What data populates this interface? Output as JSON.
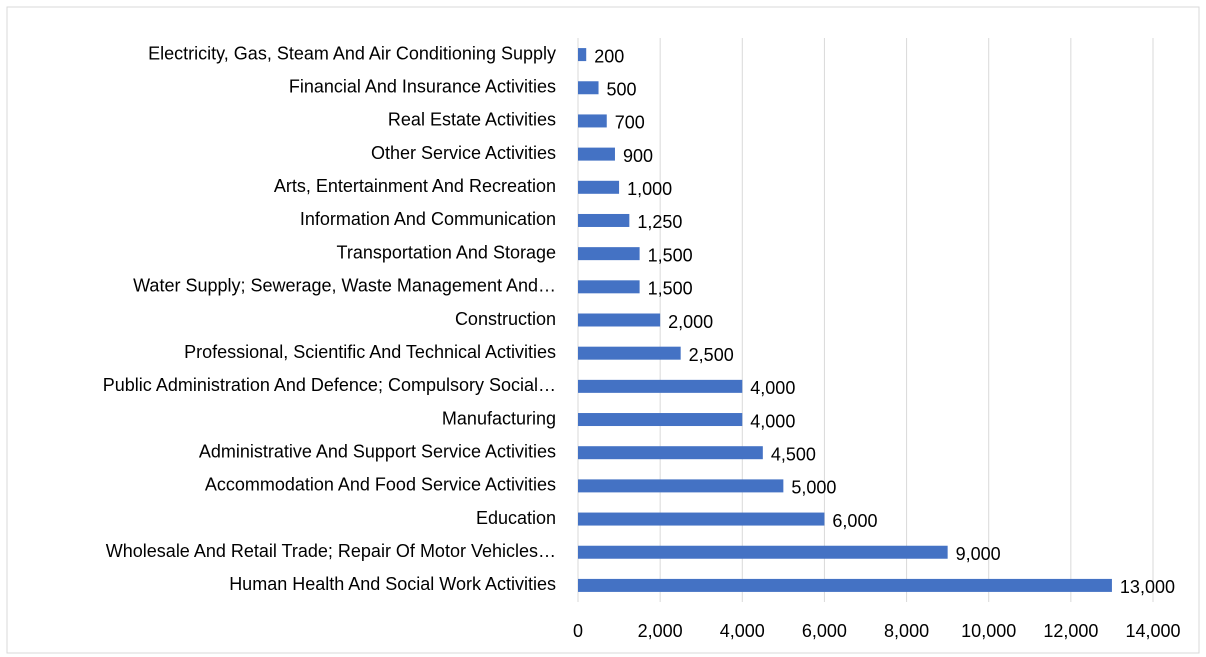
{
  "chart_data": {
    "type": "bar",
    "orientation": "horizontal",
    "color": "#4472c4",
    "grid": true,
    "categories": [
      "Electricity, Gas, Steam And Air Conditioning Supply",
      "Financial And Insurance Activities",
      "Real Estate Activities",
      "Other Service Activities",
      "Arts, Entertainment And Recreation",
      "Information And Communication",
      "Transportation And Storage",
      "Water Supply; Sewerage, Waste Management And…",
      "Construction",
      "Professional, Scientific And Technical Activities",
      "Public Administration And Defence; Compulsory Social…",
      "Manufacturing",
      "Administrative And Support Service Activities",
      "Accommodation And Food Service Activities",
      "Education",
      "Wholesale And Retail Trade; Repair Of Motor Vehicles…",
      "Human Health And Social Work Activities"
    ],
    "values": [
      200,
      500,
      700,
      900,
      1000,
      1250,
      1500,
      1500,
      2000,
      2500,
      4000,
      4000,
      4500,
      5000,
      6000,
      9000,
      13000
    ],
    "value_labels": [
      "200",
      "500",
      "700",
      "900",
      "1,000",
      "1,250",
      "1,500",
      "1,500",
      "2,000",
      "2,500",
      "4,000",
      "4,000",
      "4,500",
      "5,000",
      "6,000",
      "9,000",
      "13,000"
    ],
    "xlim": [
      0,
      14000
    ],
    "xticks": [
      0,
      {
        "value": 2000,
        "label": "2,000"
      },
      {
        "value": 4000,
        "label": "4,000"
      },
      {
        "value": 6000,
        "label": "6,000"
      },
      {
        "value": 8000,
        "label": "8,000"
      },
      {
        "value": 10000,
        "label": "10,000"
      },
      {
        "value": 12000,
        "label": "12,000"
      },
      {
        "value": 14000,
        "label": "14,000"
      }
    ]
  }
}
